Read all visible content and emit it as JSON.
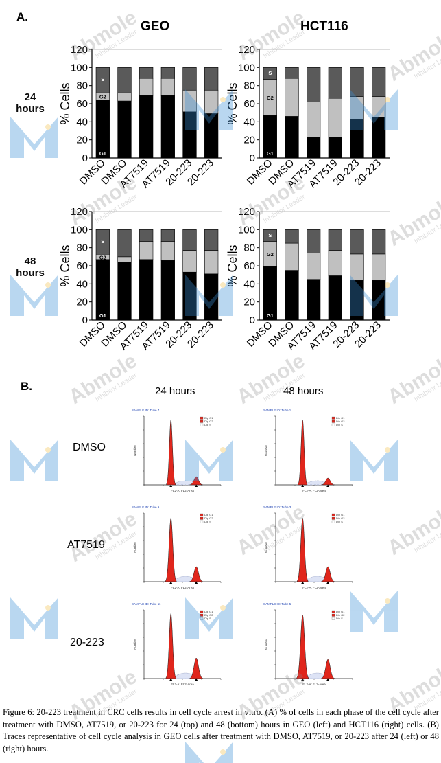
{
  "panel_labels": {
    "a": "A.",
    "b": "B."
  },
  "columns": {
    "left": "GEO",
    "right": "HCT116"
  },
  "rows": [
    {
      "line1": "24",
      "line2": "hours"
    },
    {
      "line1": "48",
      "line2": "hours"
    }
  ],
  "watermark": {
    "brand": "Abmole",
    "tagline": "Inhibitor Leader"
  },
  "colors": {
    "G1": "#000000",
    "G2": "#c0c0c0",
    "S": "#5a5a5a",
    "trace_fill": "#e0261c",
    "watermark": "#3a8fd6"
  },
  "chart_data": [
    {
      "type": "bar",
      "stacked": true,
      "panel": "GEO 24 hours",
      "categories": [
        "DMSO",
        "DMSO",
        "AT7519",
        "AT7519",
        "20-223",
        "20-223"
      ],
      "ylabel": "% Cells",
      "ylim": [
        0,
        120
      ],
      "yticks": [
        0,
        20,
        40,
        60,
        80,
        100,
        120
      ],
      "series": [
        {
          "name": "G1",
          "values": [
            64,
            63,
            69,
            69,
            51,
            49
          ]
        },
        {
          "name": "G2",
          "values": [
            8,
            9,
            19,
            19,
            24,
            26
          ]
        },
        {
          "name": "S",
          "values": [
            28,
            28,
            12,
            12,
            25,
            25
          ]
        }
      ],
      "segment_labels": [
        "G1",
        "G2",
        "S"
      ]
    },
    {
      "type": "bar",
      "stacked": true,
      "panel": "HCT116 24 hours",
      "categories": [
        "DMSO",
        "DMSO",
        "AT7519",
        "AT7519",
        "20-223",
        "20-223"
      ],
      "ylabel": "% Cells",
      "ylim": [
        0,
        120
      ],
      "yticks": [
        0,
        20,
        40,
        60,
        80,
        100,
        120
      ],
      "series": [
        {
          "name": "G1",
          "values": [
            47,
            46,
            23,
            23,
            43,
            45
          ]
        },
        {
          "name": "G2",
          "values": [
            40,
            42,
            39,
            43,
            25,
            23
          ]
        },
        {
          "name": "S",
          "values": [
            13,
            12,
            38,
            34,
            32,
            32
          ]
        }
      ],
      "segment_labels": [
        "G1",
        "G2",
        "S"
      ]
    },
    {
      "type": "bar",
      "stacked": true,
      "panel": "GEO 48 hours",
      "categories": [
        "DMSO",
        "DMSO",
        "AT7519",
        "AT7519",
        "20-223",
        "20-223"
      ],
      "ylabel": "% Cells",
      "ylim": [
        0,
        120
      ],
      "yticks": [
        0,
        20,
        40,
        60,
        80,
        100,
        120
      ],
      "series": [
        {
          "name": "G1",
          "values": [
            67,
            64,
            67,
            66,
            53,
            51
          ]
        },
        {
          "name": "G2",
          "values": [
            5,
            6,
            20,
            21,
            24,
            26
          ]
        },
        {
          "name": "S",
          "values": [
            28,
            30,
            13,
            13,
            23,
            23
          ]
        }
      ],
      "segment_labels": [
        "G1",
        "G2",
        "S"
      ]
    },
    {
      "type": "bar",
      "stacked": true,
      "panel": "HCT116 48 hours",
      "categories": [
        "DMSO",
        "DMSO",
        "AT7519",
        "AT7519",
        "20-223",
        "20-223"
      ],
      "ylabel": "% Cells",
      "ylim": [
        0,
        120
      ],
      "yticks": [
        0,
        20,
        40,
        60,
        80,
        100,
        120
      ],
      "series": [
        {
          "name": "G1",
          "values": [
            59,
            55,
            45,
            49,
            44,
            44
          ]
        },
        {
          "name": "G2",
          "values": [
            28,
            30,
            29,
            28,
            29,
            29
          ]
        },
        {
          "name": "S",
          "values": [
            13,
            15,
            26,
            23,
            27,
            27
          ]
        }
      ],
      "segment_labels": [
        "G1",
        "G2",
        "S"
      ]
    }
  ],
  "traces": {
    "columns": [
      "24 hours",
      "48 hours"
    ],
    "rows": [
      "DMSO",
      "AT7519",
      "20-223"
    ],
    "cells": [
      {
        "title": "SAMPLE ID: Tube 7",
        "xlabel": "FL2-A: FL2-Area",
        "ylabel": "Number",
        "legend": [
          "Dip G1",
          "Dip G2",
          "Dip S"
        ],
        "g1": 0.95,
        "g2": 0.12,
        "s": 0.06,
        "g1w": 1.0
      },
      {
        "title": "SAMPLE ID: Tube 1",
        "xlabel": "FL2-A: FL2-Area",
        "ylabel": "Number",
        "legend": [
          "Dip G1",
          "Dip G2",
          "Dip S"
        ],
        "g1": 0.95,
        "g2": 0.1,
        "s": 0.06,
        "g1w": 1.0
      },
      {
        "title": "SAMPLE ID: Tube 9",
        "xlabel": "FL2-A: FL2-Area",
        "ylabel": "Number",
        "legend": [
          "Dip G1",
          "Dip G2",
          "Dip S"
        ],
        "g1": 0.93,
        "g2": 0.22,
        "s": 0.08,
        "g1w": 1.2
      },
      {
        "title": "SAMPLE ID: Tube 3",
        "xlabel": "FL2-A: FL2-Area",
        "ylabel": "Number",
        "legend": [
          "Dip G1",
          "Dip G2",
          "Dip S"
        ],
        "g1": 0.93,
        "g2": 0.22,
        "s": 0.08,
        "g1w": 1.2
      },
      {
        "title": "SAMPLE ID: Tube 11",
        "xlabel": "FL2-A: FL2-Area",
        "ylabel": "Number",
        "legend": [
          "Dip G1",
          "Dip G2",
          "Dip S"
        ],
        "g1": 0.95,
        "g2": 0.3,
        "s": 0.08,
        "g1w": 1.1
      },
      {
        "title": "SAMPLE ID: Tube 5",
        "xlabel": "FL2-A: FL2-Area",
        "ylabel": "Number",
        "legend": [
          "Dip G1",
          "Dip G2",
          "Dip S"
        ],
        "g1": 0.93,
        "g2": 0.28,
        "s": 0.08,
        "g1w": 1.3
      }
    ]
  },
  "caption": "Figure 6: 20-223 treatment in CRC cells results in cell cycle arrest in vitro. (A) % of cells in each phase of the cell cycle after treatment with DMSO, AT7519, or 20-223 for 24 (top) and 48 (bottom) hours in GEO (left) and HCT116 (right) cells. (B) Traces representative of cell cycle analysis in GEO cells after treatment with DMSO, AT7519, or 20-223 after 24 (left) or 48 (right) hours."
}
